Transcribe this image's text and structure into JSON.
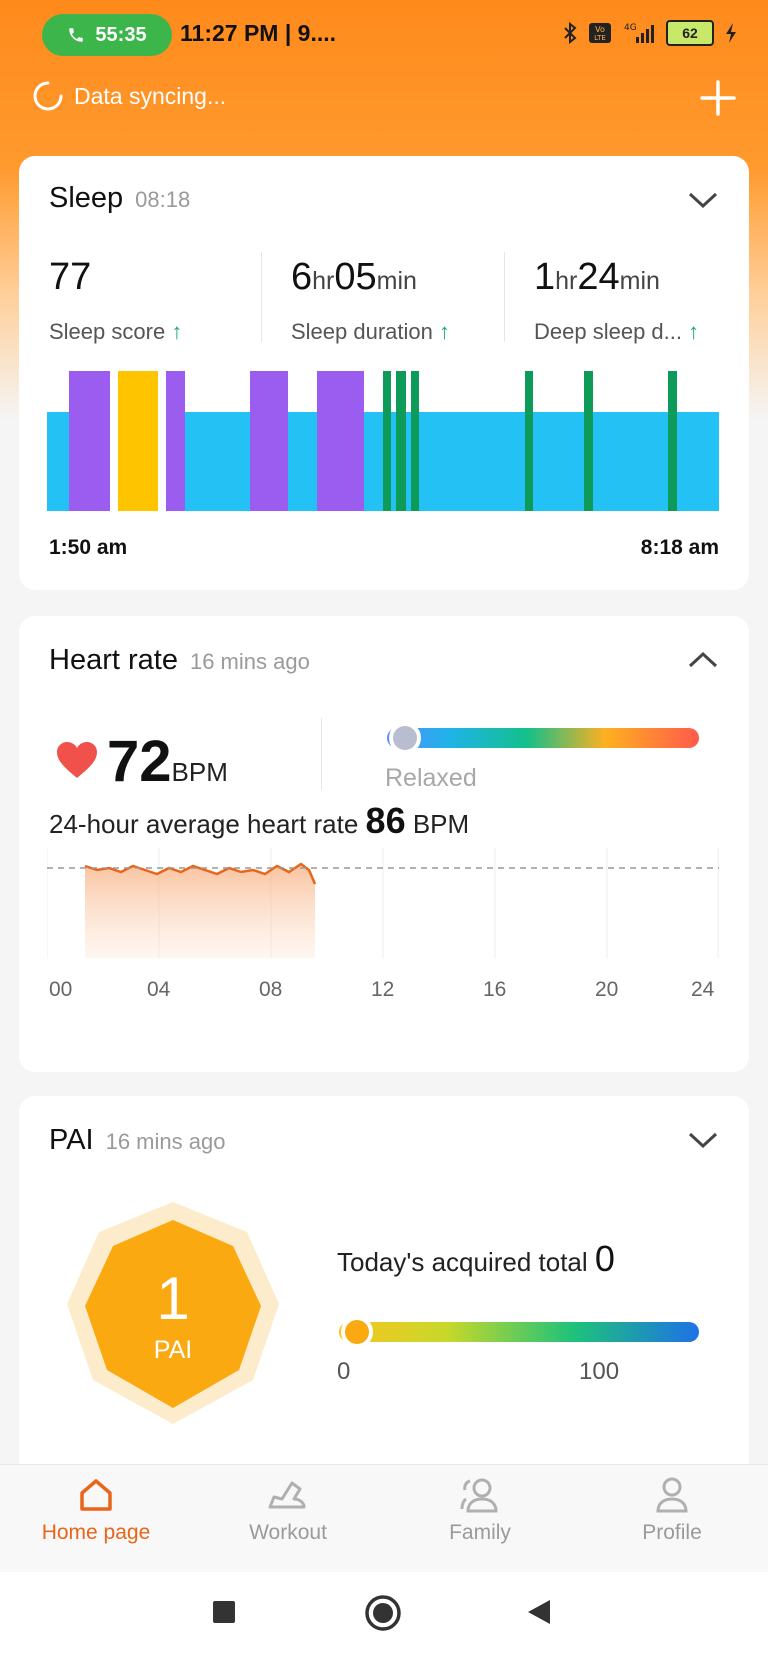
{
  "status_bar": {
    "call_timer": "55:35",
    "clock": "11:27 PM | 9....",
    "battery": "62"
  },
  "sync": {
    "label": "Data syncing..."
  },
  "sleep": {
    "title": "Sleep",
    "time": "08:18",
    "score_value": "77",
    "score_label": "Sleep score",
    "duration_hr": "6",
    "duration_min": "05",
    "duration_label": "Sleep duration",
    "deep_hr": "1",
    "deep_min": "24",
    "deep_label": "Deep sleep d...",
    "unit_hr": "hr",
    "unit_min": "min",
    "start": "1:50 am",
    "end": "8:18 am"
  },
  "heart": {
    "title": "Heart rate",
    "time": "16 mins ago",
    "value": "72",
    "unit": "BPM",
    "state": "Relaxed",
    "avg_label": "24-hour average heart rate",
    "avg_value": "86",
    "avg_unit": "BPM",
    "axis": [
      "00",
      "04",
      "08",
      "12",
      "16",
      "20",
      "24"
    ]
  },
  "pai": {
    "title": "PAI",
    "time": "16 mins ago",
    "value": "1",
    "unit": "PAI",
    "today_label": "Today's acquired total",
    "today_value": "0",
    "scale_min": "0",
    "scale_max": "100"
  },
  "nav": {
    "home": "Home page",
    "workout": "Workout",
    "family": "Family",
    "profile": "Profile"
  },
  "colors": {
    "accent": "#e8651a",
    "deep": "#9b5cf0",
    "light": "#24c1f5",
    "rem": "#ffc400",
    "awake": "#0e9a58"
  },
  "icons": [
    "phone-icon",
    "bluetooth-icon",
    "volte-icon",
    "signal-icon",
    "battery-icon",
    "charging-icon",
    "sync-icon",
    "plus-icon",
    "chevron-down-icon",
    "chevron-up-icon",
    "heart-icon",
    "home-icon",
    "shoe-icon",
    "family-icon",
    "profile-icon",
    "square-icon",
    "circle-icon",
    "back-icon"
  ]
}
